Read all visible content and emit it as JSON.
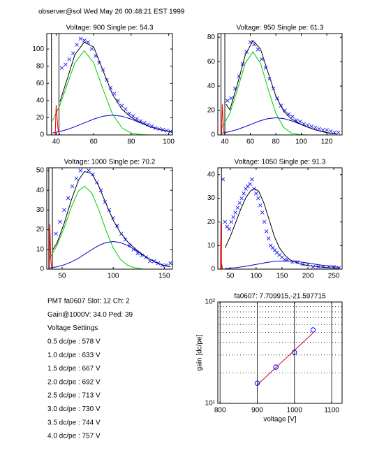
{
  "header": "observer@sol Wed May 26 00:48:21 EST 1999",
  "info": {
    "lines": [
      "PMT fa0607 Slot: 12 Ch: 2",
      "Gain@1000V: 34.0 Ped: 39",
      "Voltage Settings",
      "0.5 dc/pe : 578 V",
      "1.0 dc/pe : 633 V",
      "1.5 dc/pe : 667 V",
      "2.0 dc/pe : 692 V",
      "2.5 dc/pe : 713 V",
      "3.0 dc/pe : 730 V",
      "3.5 dc/pe : 744 V",
      "4.0 dc/pe : 757 V"
    ]
  },
  "chart_data": [
    {
      "type": "scatter",
      "title": "Voltage: 900 Single pe: 54.3",
      "xlim": [
        35,
        102
      ],
      "ylim": [
        0,
        118
      ],
      "xticks": [
        40,
        60,
        80,
        100
      ],
      "yticks": [
        0,
        20,
        40,
        60,
        80,
        100
      ],
      "vlines": [
        37.5,
        41.5
      ],
      "vline_color": "#000000",
      "scatter": {
        "color": "#0000ff",
        "x": [
          43,
          45,
          47,
          49,
          51,
          53,
          55,
          57,
          59,
          61,
          63,
          65,
          67,
          69,
          71,
          73,
          75,
          77,
          79,
          81,
          83,
          85,
          87,
          89,
          91,
          93,
          95,
          97,
          99,
          101,
          103
        ],
        "values": [
          78,
          82,
          88,
          95,
          105,
          112,
          110,
          108,
          100,
          92,
          84,
          76,
          64,
          55,
          48,
          40,
          34,
          30,
          25,
          22,
          19,
          16,
          14,
          12,
          10,
          8,
          7,
          6,
          5,
          4,
          3
        ]
      },
      "series": [
        {
          "color": "#00cc00",
          "x": [
            38,
            42,
            46,
            50,
            55,
            60,
            65,
            70,
            75,
            80,
            85,
            90
          ],
          "values": [
            16.5,
            34.6,
            59.5,
            84,
            98,
            84,
            52.9,
            24.5,
            8.3,
            2.1,
            0.4,
            0
          ]
        },
        {
          "color": "#0000cc",
          "x": [
            38,
            42,
            46,
            50,
            55,
            60,
            65,
            70,
            75,
            80,
            85,
            90,
            95,
            100,
            105
          ],
          "values": [
            2.3,
            4,
            6.4,
            9.5,
            14,
            18.4,
            21.8,
            23,
            21.8,
            18.4,
            14,
            9.5,
            6.4,
            4,
            2.3
          ]
        },
        {
          "color": "#000000",
          "x": [
            42,
            46,
            50,
            55,
            60,
            65,
            70,
            75,
            80,
            85,
            90,
            95,
            100,
            105
          ],
          "values": [
            38.6,
            65.9,
            93.5,
            108,
            102.4,
            74.7,
            47.5,
            30.1,
            20.5,
            14.4,
            9.5,
            6.4,
            4,
            2.3
          ]
        },
        {
          "color": "#ff0000",
          "x": [
            38,
            39.5,
            40,
            41,
            42
          ],
          "values": [
            0,
            0,
            35,
            6,
            0
          ]
        }
      ]
    },
    {
      "type": "scatter",
      "title": "Voltage: 950 Single pe: 61.3",
      "xlim": [
        34.5,
        132
      ],
      "ylim": [
        0,
        83
      ],
      "xticks": [
        40,
        60,
        80,
        100,
        120
      ],
      "yticks": [
        0,
        20,
        40,
        60,
        80
      ],
      "vlines": [
        37,
        40
      ],
      "vline_color": "#000000",
      "scatter": {
        "color": "#0000ff",
        "x": [
          42,
          45,
          48,
          51,
          54,
          57,
          60,
          63,
          66,
          69,
          72,
          75,
          78,
          81,
          84,
          87,
          90,
          93,
          96,
          99,
          102,
          105,
          108,
          111,
          114,
          117,
          120,
          123,
          126,
          129
        ],
        "values": [
          28,
          30,
          38,
          48,
          58,
          68,
          76,
          74,
          70,
          62,
          55,
          46,
          38,
          30,
          24,
          20,
          17,
          15,
          12,
          11,
          9,
          8,
          7,
          6,
          5,
          4,
          4,
          3,
          2,
          2
        ]
      },
      "series": [
        {
          "color": "#00cc00",
          "x": [
            38,
            44,
            50,
            56,
            62,
            68,
            74,
            80,
            86,
            92,
            98,
            104
          ],
          "values": [
            6.3,
            17.8,
            37.5,
            58.6,
            68,
            58.6,
            37.5,
            17.8,
            6.3,
            1.6,
            0.3,
            0
          ]
        },
        {
          "color": "#0000cc",
          "x": [
            38,
            44,
            50,
            56,
            62,
            68,
            74,
            80,
            86,
            92,
            98,
            104,
            110,
            116,
            122,
            128
          ],
          "values": [
            1.5,
            2.8,
            4.5,
            6.8,
            9.3,
            11.7,
            13.4,
            14,
            13.4,
            11.7,
            9.3,
            6.8,
            4.5,
            2.8,
            1.5,
            0.8
          ]
        },
        {
          "color": "#000000",
          "x": [
            41,
            44,
            50,
            56,
            62,
            68,
            74,
            80,
            86,
            92,
            98,
            104,
            110,
            116,
            122,
            128
          ],
          "values": [
            25,
            20.6,
            42,
            65.4,
            77.3,
            70.3,
            50.9,
            31.8,
            19.7,
            13.3,
            9.6,
            6.8,
            4.5,
            2.8,
            1.5,
            0.8
          ]
        },
        {
          "color": "#ff0000",
          "x": [
            36,
            37.5,
            38,
            39,
            40
          ],
          "values": [
            0,
            0,
            25,
            4,
            0
          ]
        }
      ]
    },
    {
      "type": "scatter",
      "title": "Voltage: 1000 Single pe: 70.2",
      "xlim": [
        35,
        158
      ],
      "ylim": [
        0,
        51.4
      ],
      "xticks": [
        50,
        100,
        150
      ],
      "yticks": [
        0,
        10,
        20,
        30,
        40,
        50
      ],
      "vlines": [
        37,
        40.5
      ],
      "vline_color": "#000000",
      "scatter": {
        "color": "#0000ff",
        "x": [
          44,
          48,
          52,
          56,
          60,
          64,
          68,
          72,
          76,
          80,
          84,
          88,
          92,
          96,
          100,
          104,
          108,
          112,
          116,
          120,
          124,
          128,
          132,
          136,
          140,
          144,
          148,
          152,
          156
        ],
        "values": [
          18,
          24,
          30,
          36,
          42,
          46,
          50,
          52,
          50,
          48,
          44,
          40,
          34,
          30,
          26,
          22,
          18,
          15,
          12,
          10,
          8,
          7,
          6,
          4,
          4,
          3,
          2,
          2,
          3
        ]
      },
      "series": [
        {
          "color": "#00cc00",
          "x": [
            38,
            45,
            52,
            59,
            66,
            72,
            79,
            86,
            93,
            100,
            107,
            114,
            121,
            128
          ],
          "values": [
            5.7,
            12,
            21,
            31.4,
            39.6,
            42,
            38.6,
            30,
            19.6,
            10.8,
            5,
            2,
            0.7,
            0.2
          ]
        },
        {
          "color": "#0000cc",
          "x": [
            38,
            45,
            52,
            59,
            66,
            72,
            79,
            86,
            93,
            100,
            107,
            114,
            121,
            128,
            135,
            142,
            149,
            156
          ],
          "values": [
            0.6,
            1.2,
            2.2,
            3.6,
            5.5,
            7.5,
            9.9,
            12,
            13.5,
            14,
            13.5,
            12,
            9.9,
            7.5,
            5.3,
            3.4,
            2,
            1.2
          ]
        },
        {
          "color": "#000000",
          "x": [
            41,
            45,
            52,
            59,
            66,
            72,
            79,
            86,
            93,
            100,
            107,
            114,
            121,
            128,
            135,
            142,
            149,
            156
          ],
          "values": [
            10,
            13.2,
            23.2,
            35,
            45.1,
            49.5,
            48.5,
            42,
            33.1,
            24.8,
            18.5,
            14,
            10.6,
            7.7,
            5.3,
            3.4,
            2,
            1.2
          ]
        },
        {
          "color": "#ff0000",
          "x": [
            36,
            37.5,
            38,
            39,
            40
          ],
          "values": [
            0,
            0,
            23,
            4,
            0
          ]
        }
      ]
    },
    {
      "type": "scatter",
      "title": "Voltage: 1050 Single pe: 91.3",
      "xlim": [
        26,
        266
      ],
      "ylim": [
        0,
        42.9
      ],
      "xticks": [
        50,
        100,
        150,
        200,
        250
      ],
      "yticks": [
        0,
        10,
        20,
        30,
        40
      ],
      "vlines": [
        33
      ],
      "vline_color": "#000000",
      "scatter": {
        "color": "#0000ff",
        "x": [
          36,
          40,
          44,
          48,
          52,
          56,
          60,
          64,
          68,
          72,
          76,
          80,
          84,
          88,
          92,
          96,
          100,
          104,
          108,
          112,
          116,
          120,
          124,
          128,
          132,
          136,
          140,
          145,
          150,
          155,
          160,
          170,
          180,
          190,
          200,
          210,
          220,
          230,
          240,
          250,
          260
        ],
        "values": [
          38,
          20,
          18,
          17,
          20,
          22,
          24,
          26,
          28,
          30,
          32,
          34,
          35,
          36,
          38,
          34,
          32,
          30,
          27,
          24,
          20,
          16,
          13,
          10,
          9,
          8,
          7,
          6,
          5,
          4,
          4,
          3,
          3,
          2,
          2,
          1,
          1,
          1,
          1,
          1,
          0.5
        ]
      },
      "series": [
        {
          "color": "#0000cc",
          "x": [
            40,
            60,
            80,
            100,
            120,
            140,
            160,
            180,
            200,
            220,
            240,
            260
          ],
          "values": [
            0.3,
            0.6,
            1.2,
            2,
            2.8,
            3.4,
            3.5,
            3.2,
            2.6,
            1.9,
            1.3,
            0.8
          ]
        },
        {
          "color": "#000000",
          "x": [
            40,
            50,
            60,
            70,
            80,
            90,
            97,
            105,
            115,
            125,
            135,
            145,
            155,
            165,
            175,
            185,
            200,
            220,
            240,
            260
          ],
          "values": [
            9,
            13.8,
            19.4,
            25.2,
            30.2,
            33.3,
            34,
            33,
            28,
            21,
            14,
            9,
            6,
            4,
            3,
            2.2,
            1.5,
            1,
            0.6,
            0.4
          ]
        },
        {
          "color": "#ff0000",
          "x": [
            30,
            31,
            32,
            33,
            35
          ],
          "values": [
            0,
            0,
            20,
            3,
            0
          ]
        }
      ]
    },
    {
      "type": "log",
      "title": "fa0607: 7.709915,-21.597715",
      "xlabel": "voltage [V]",
      "ylabel": "gain [dc/pe]",
      "xlim": [
        794,
        1128
      ],
      "ylim": [
        10,
        100
      ],
      "yscale": "log",
      "xticks": [
        800,
        900,
        1000,
        1100
      ],
      "yticks": [
        {
          "value": 10,
          "label": "10¹"
        },
        {
          "value": 100,
          "label": "10²"
        }
      ],
      "yminor": [
        20,
        30,
        40,
        50,
        60,
        70,
        80,
        90
      ],
      "grid": true,
      "points": {
        "color": "#0000ff",
        "x": [
          900,
          950,
          1000,
          1050
        ],
        "values": [
          15.8,
          22.8,
          31.9,
          53
        ]
      },
      "fit": {
        "color": "#cc0033",
        "x": [
          900,
          1050
        ],
        "values": [
          15.2,
          49.6
        ]
      }
    }
  ]
}
